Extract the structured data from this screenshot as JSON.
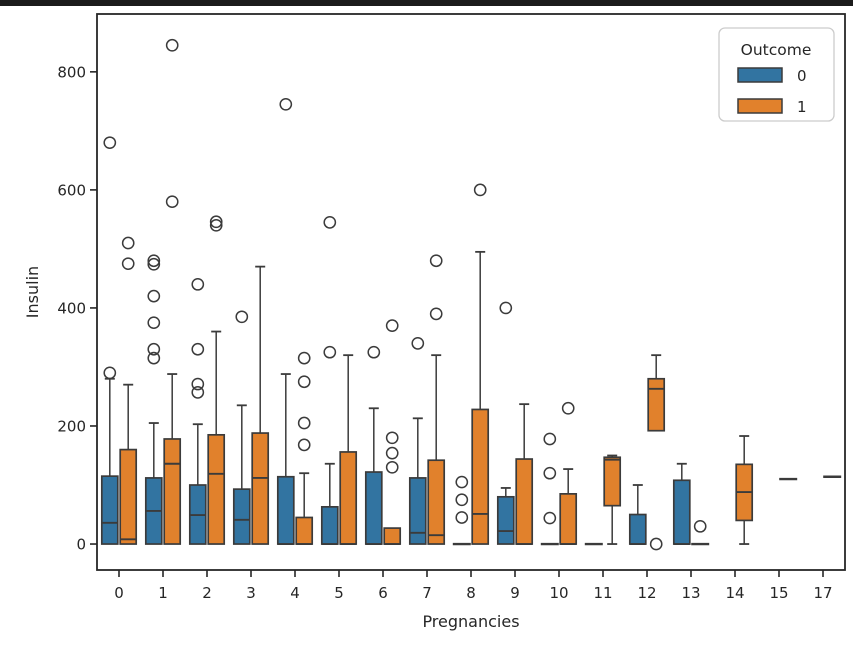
{
  "figure": {
    "background": "#ffffff",
    "top_bar_color": "#1b1b1b"
  },
  "chart_data": {
    "type": "boxplot-grouped",
    "title": "",
    "xlabel": "Pregnancies",
    "ylabel": "Insulin",
    "categories": [
      "0",
      "1",
      "2",
      "3",
      "4",
      "5",
      "6",
      "7",
      "8",
      "9",
      "10",
      "11",
      "12",
      "13",
      "14",
      "15",
      "17"
    ],
    "y_ticks": [
      0,
      200,
      400,
      600,
      800
    ],
    "ylim": [
      -44,
      898
    ],
    "grid": false,
    "axes_color": "#262626",
    "box_edge_color": "#3b3b3b",
    "legend": {
      "title": "Outcome",
      "position": "upper right",
      "entries": [
        {
          "label": "0",
          "color": "#3274a1"
        },
        {
          "label": "1",
          "color": "#e1812c"
        }
      ]
    },
    "series": [
      {
        "name": "0",
        "color": "#3274a1",
        "boxes": [
          {
            "whislo": 0,
            "q1": 0,
            "med": 36,
            "q3": 115,
            "whishi": 280,
            "fliers": [
              290,
              680
            ]
          },
          {
            "whislo": 0,
            "q1": 0,
            "med": 56,
            "q3": 112,
            "whishi": 205,
            "fliers": [
              315,
              330,
              375,
              420,
              474,
              480
            ]
          },
          {
            "whislo": 0,
            "q1": 0,
            "med": 49,
            "q3": 100,
            "whishi": 203,
            "fliers": [
              257,
              271,
              330,
              440
            ]
          },
          {
            "whislo": 0,
            "q1": 0,
            "med": 41,
            "q3": 93,
            "whishi": 235,
            "fliers": [
              385
            ]
          },
          {
            "whislo": 0,
            "q1": 0,
            "med": 0,
            "q3": 114,
            "whishi": 288,
            "fliers": [
              745
            ]
          },
          {
            "whislo": 0,
            "q1": 0,
            "med": 0,
            "q3": 63,
            "whishi": 136,
            "fliers": [
              325,
              545
            ]
          },
          {
            "whislo": 0,
            "q1": 0,
            "med": 0,
            "q3": 122,
            "whishi": 230,
            "fliers": [
              325
            ]
          },
          {
            "whislo": 0,
            "q1": 0,
            "med": 19,
            "q3": 112,
            "whishi": 213,
            "fliers": [
              340
            ]
          },
          {
            "whislo": 0,
            "q1": 0,
            "med": 0,
            "q3": 0,
            "whishi": 0,
            "fliers": [
              45,
              75,
              105
            ]
          },
          {
            "whislo": 0,
            "q1": 0,
            "med": 22,
            "q3": 80,
            "whishi": 95,
            "fliers": [
              400
            ]
          },
          {
            "whislo": 0,
            "q1": 0,
            "med": 0,
            "q3": 0,
            "whishi": 0,
            "fliers": [
              44,
              120,
              178
            ]
          },
          {
            "whislo": 0,
            "q1": 0,
            "med": 0,
            "q3": 0,
            "whishi": 0,
            "fliers": []
          },
          {
            "whislo": 0,
            "q1": 0,
            "med": 0,
            "q3": 50,
            "whishi": 100,
            "fliers": []
          },
          {
            "whislo": 0,
            "q1": 0,
            "med": 0,
            "q3": 108,
            "whishi": 136,
            "fliers": []
          },
          null,
          null,
          null
        ]
      },
      {
        "name": "1",
        "color": "#e1812c",
        "boxes": [
          {
            "whislo": 0,
            "q1": 0,
            "med": 8,
            "q3": 160,
            "whishi": 270,
            "fliers": [
              475,
              510
            ]
          },
          {
            "whislo": 0,
            "q1": 0,
            "med": 136,
            "q3": 178,
            "whishi": 288,
            "fliers": [
              580,
              845
            ]
          },
          {
            "whislo": 0,
            "q1": 0,
            "med": 119,
            "q3": 185,
            "whishi": 360,
            "fliers": [
              540,
              546
            ]
          },
          {
            "whislo": 0,
            "q1": 0,
            "med": 112,
            "q3": 188,
            "whishi": 470,
            "fliers": []
          },
          {
            "whislo": 0,
            "q1": 0,
            "med": 0,
            "q3": 45,
            "whishi": 120,
            "fliers": [
              168,
              205,
              275,
              315
            ]
          },
          {
            "whislo": 0,
            "q1": 0,
            "med": 0,
            "q3": 156,
            "whishi": 320,
            "fliers": []
          },
          {
            "whislo": 0,
            "q1": 0,
            "med": 0,
            "q3": 27,
            "whishi": 27,
            "fliers": [
              130,
              154,
              180,
              370
            ]
          },
          {
            "whislo": 0,
            "q1": 0,
            "med": 15,
            "q3": 142,
            "whishi": 320,
            "fliers": [
              390,
              480
            ]
          },
          {
            "whislo": 0,
            "q1": 0,
            "med": 51,
            "q3": 228,
            "whishi": 495,
            "fliers": [
              600
            ]
          },
          {
            "whislo": 0,
            "q1": 0,
            "med": 0,
            "q3": 144,
            "whishi": 237,
            "fliers": []
          },
          {
            "whislo": 0,
            "q1": 0,
            "med": 0,
            "q3": 85,
            "whishi": 127,
            "fliers": [
              230
            ]
          },
          {
            "whislo": 0,
            "q1": 65,
            "med": 143,
            "q3": 147,
            "whishi": 150,
            "fliers": []
          },
          {
            "whislo": 192,
            "q1": 192,
            "med": 263,
            "q3": 280,
            "whishi": 320,
            "fliers": [
              0
            ]
          },
          {
            "whislo": 0,
            "q1": 0,
            "med": 0,
            "q3": 0,
            "whishi": 0,
            "fliers": [
              30
            ]
          },
          {
            "whislo": 0,
            "q1": 40,
            "med": 88,
            "q3": 135,
            "whishi": 183,
            "fliers": []
          },
          {
            "whislo": 110,
            "q1": 110,
            "med": 110,
            "q3": 110,
            "whishi": 110,
            "fliers": []
          },
          {
            "whislo": 114,
            "q1": 114,
            "med": 114,
            "q3": 114,
            "whishi": 114,
            "fliers": []
          }
        ]
      }
    ]
  }
}
